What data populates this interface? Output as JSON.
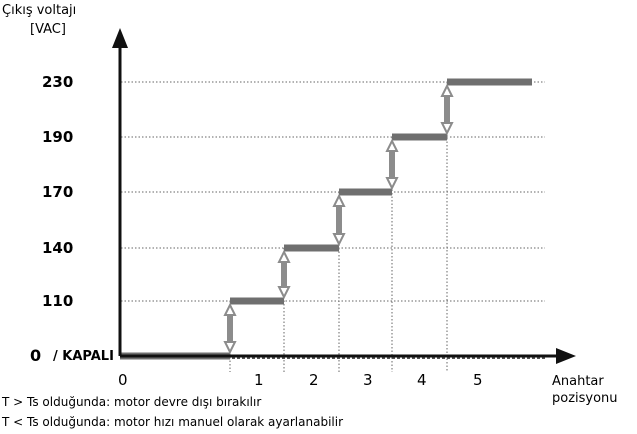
{
  "chart_data": {
    "type": "line",
    "step": true,
    "ylabel_lines": [
      "Çıkış voltajı",
      "[VAC]"
    ],
    "xlabel_lines": [
      "Anahtar",
      "pozisyonu"
    ],
    "y_ticks": [
      {
        "value": 230,
        "label": "230"
      },
      {
        "value": 190,
        "label": "190"
      },
      {
        "value": 170,
        "label": "170"
      },
      {
        "value": 140,
        "label": "140"
      },
      {
        "value": 110,
        "label": "110"
      }
    ],
    "zero_label": "0",
    "off_label": "/ KAPALI",
    "x_ticks": [
      "0",
      "1",
      "2",
      "3",
      "4",
      "5"
    ],
    "series": [
      {
        "positions": [
          0,
          1,
          2,
          3,
          4,
          5
        ],
        "values": [
          0,
          110,
          140,
          170,
          190,
          230
        ]
      }
    ],
    "grid": true
  },
  "notes": [
    "T > Ts olduğunda: motor devre dışı bırakılır",
    "T < Ts olduğunda: motor hızı manuel olarak ayarlanabilir"
  ],
  "colors": {
    "axis": "#111111",
    "step": "#6f6f6f",
    "arrow": "#8c8c8c"
  }
}
